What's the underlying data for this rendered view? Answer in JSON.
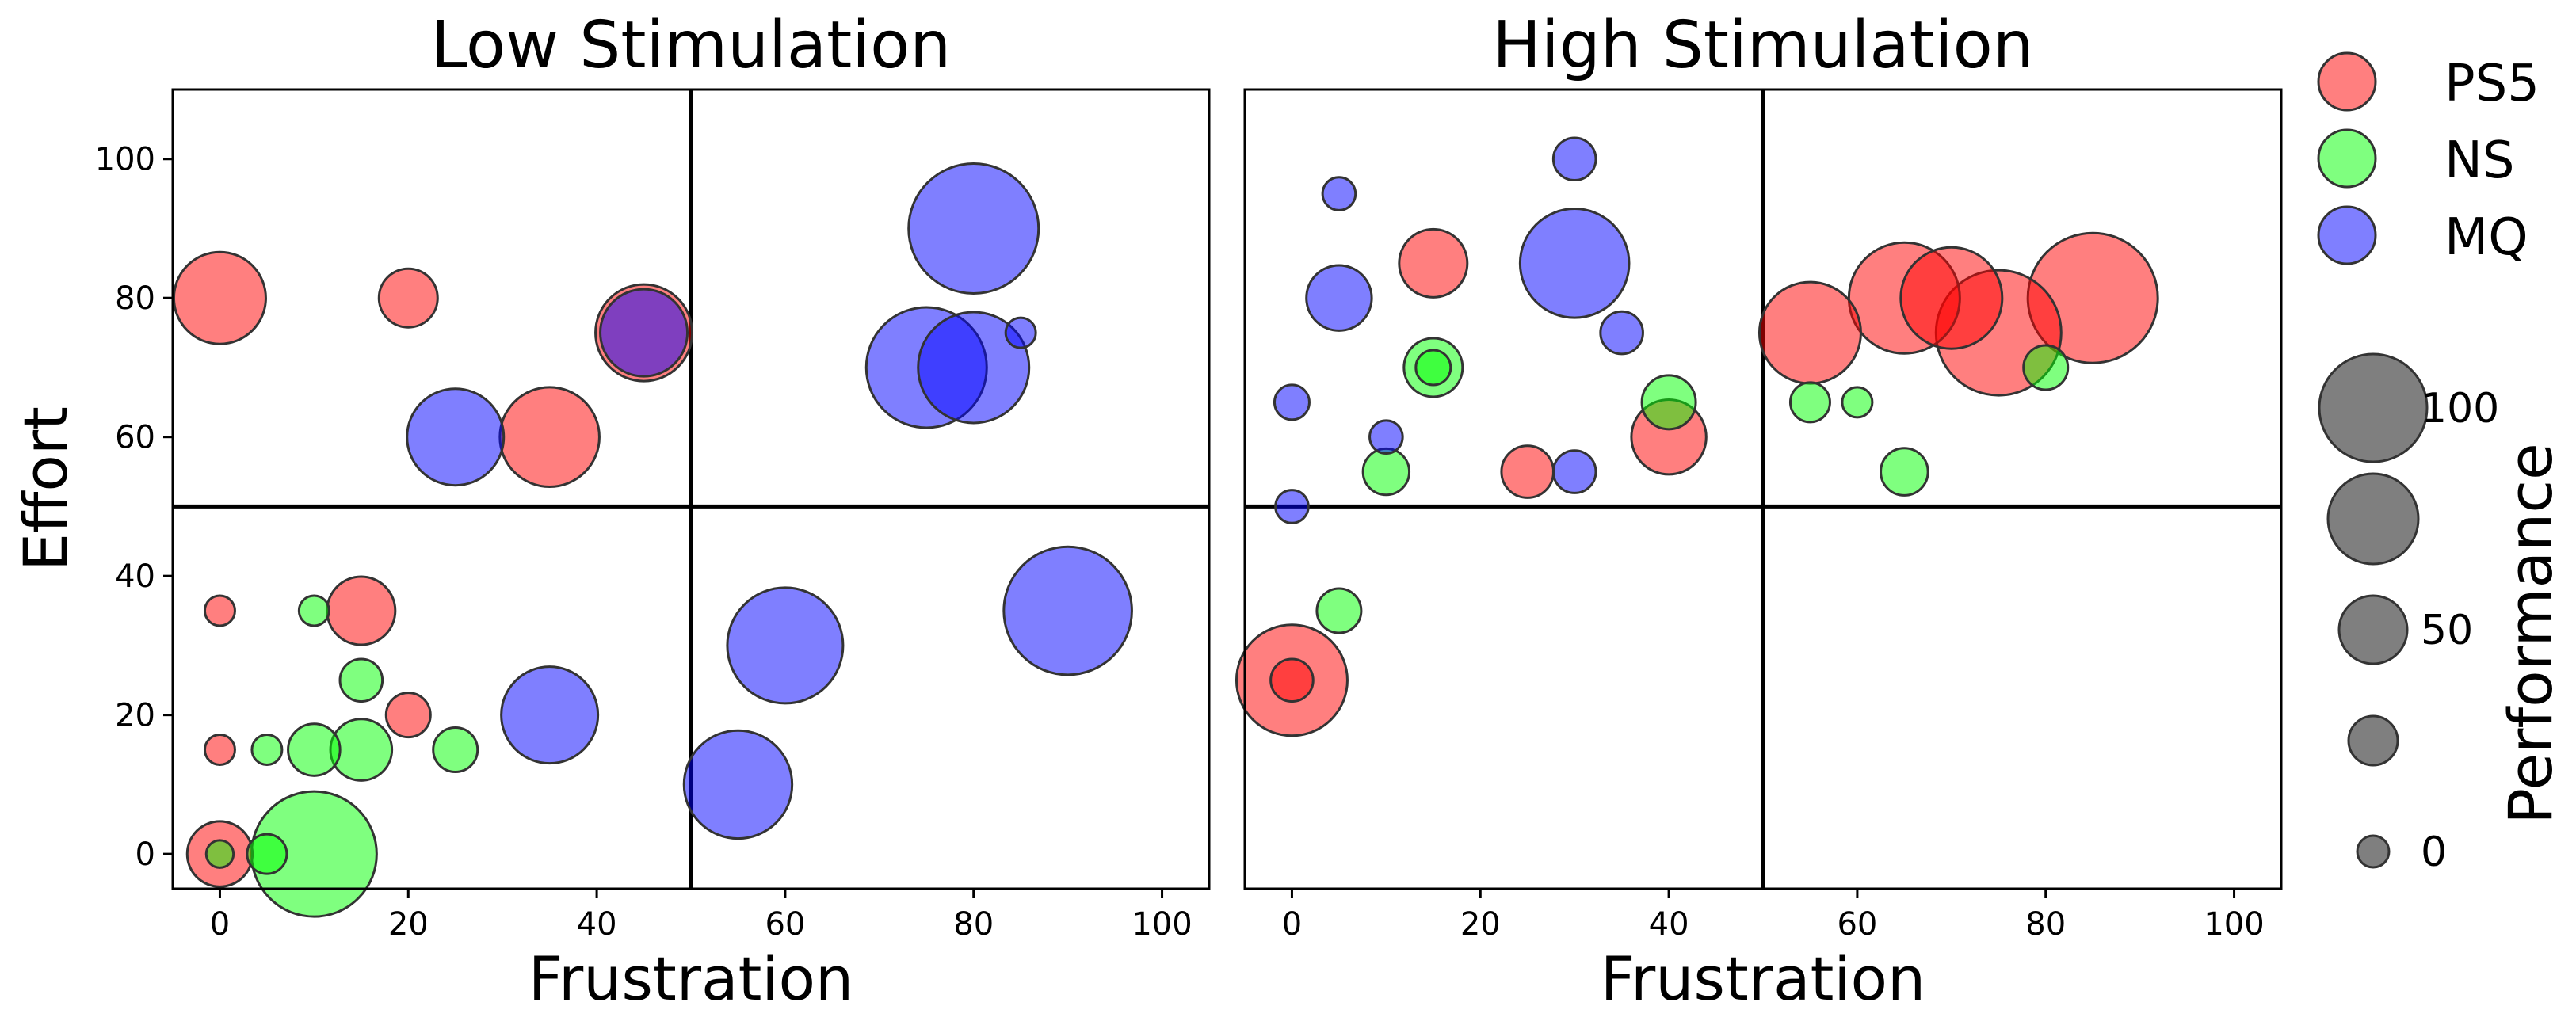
{
  "chart_data": {
    "type": "scatter",
    "bubble_size_meaning": "Performance",
    "colors": {
      "PS5": "#ff0000",
      "NS": "#00ff00",
      "MQ": "#0000ff"
    },
    "alpha": 0.5,
    "y_label": "Effort",
    "x_ticks": [
      "0",
      "20",
      "40",
      "60",
      "80",
      "100"
    ],
    "y_ticks": [
      "0",
      "20",
      "40",
      "60",
      "80",
      "100"
    ],
    "panels": [
      {
        "title": "Low Stimulation",
        "xlabel": "Frustration",
        "xlim": [
          -5,
          105
        ],
        "ylim": [
          -5,
          110
        ],
        "quadrant_lines": {
          "x": 50,
          "y": 50
        },
        "points": [
          {
            "series": "PS5",
            "x": 0,
            "y": 80,
            "performance": 80
          },
          {
            "series": "PS5",
            "x": 20,
            "y": 80,
            "performance": 45
          },
          {
            "series": "PS5",
            "x": 45,
            "y": 75,
            "performance": 85
          },
          {
            "series": "PS5",
            "x": 35,
            "y": 60,
            "performance": 88
          },
          {
            "series": "PS5",
            "x": 0,
            "y": 35,
            "performance": 15
          },
          {
            "series": "PS5",
            "x": 15,
            "y": 35,
            "performance": 55
          },
          {
            "series": "PS5",
            "x": 20,
            "y": 20,
            "performance": 30
          },
          {
            "series": "PS5",
            "x": 0,
            "y": 15,
            "performance": 15
          },
          {
            "series": "PS5",
            "x": 0,
            "y": 0,
            "performance": 52
          },
          {
            "series": "NS",
            "x": 10,
            "y": 35,
            "performance": 15
          },
          {
            "series": "NS",
            "x": 15,
            "y": 25,
            "performance": 28
          },
          {
            "series": "NS",
            "x": 5,
            "y": 15,
            "performance": 15
          },
          {
            "series": "NS",
            "x": 10,
            "y": 15,
            "performance": 38
          },
          {
            "series": "NS",
            "x": 15,
            "y": 15,
            "performance": 48
          },
          {
            "series": "NS",
            "x": 25,
            "y": 15,
            "performance": 30
          },
          {
            "series": "NS",
            "x": 5,
            "y": 0,
            "performance": 25
          },
          {
            "series": "NS",
            "x": 10,
            "y": 0,
            "performance": 115
          },
          {
            "series": "NS",
            "x": 0,
            "y": 0,
            "performance": 12
          },
          {
            "series": "MQ",
            "x": 45,
            "y": 75,
            "performance": 75
          },
          {
            "series": "MQ",
            "x": 25,
            "y": 60,
            "performance": 85
          },
          {
            "series": "MQ",
            "x": 80,
            "y": 90,
            "performance": 120
          },
          {
            "series": "MQ",
            "x": 75,
            "y": 70,
            "performance": 110
          },
          {
            "series": "MQ",
            "x": 80,
            "y": 70,
            "performance": 100
          },
          {
            "series": "MQ",
            "x": 85,
            "y": 75,
            "performance": 15
          },
          {
            "series": "MQ",
            "x": 35,
            "y": 20,
            "performance": 85
          },
          {
            "series": "MQ",
            "x": 60,
            "y": 30,
            "performance": 105
          },
          {
            "series": "MQ",
            "x": 90,
            "y": 35,
            "performance": 118
          },
          {
            "series": "MQ",
            "x": 55,
            "y": 10,
            "performance": 97
          }
        ]
      },
      {
        "title": "High Stimulation",
        "xlabel": "Frustration",
        "xlim": [
          -5,
          105
        ],
        "ylim": [
          -5,
          110
        ],
        "quadrant_lines": {
          "x": 50,
          "y": 50
        },
        "points": [
          {
            "series": "PS5",
            "x": 15,
            "y": 85,
            "performance": 55
          },
          {
            "series": "PS5",
            "x": 25,
            "y": 55,
            "performance": 38
          },
          {
            "series": "PS5",
            "x": 40,
            "y": 60,
            "performance": 62
          },
          {
            "series": "PS5",
            "x": 0,
            "y": 25,
            "performance": 100
          },
          {
            "series": "PS5",
            "x": 0,
            "y": 25,
            "performance": 28
          },
          {
            "series": "PS5",
            "x": 55,
            "y": 75,
            "performance": 90
          },
          {
            "series": "PS5",
            "x": 65,
            "y": 80,
            "performance": 100
          },
          {
            "series": "PS5",
            "x": 70,
            "y": 80,
            "performance": 90
          },
          {
            "series": "PS5",
            "x": 75,
            "y": 75,
            "performance": 115
          },
          {
            "series": "PS5",
            "x": 85,
            "y": 80,
            "performance": 120
          },
          {
            "series": "NS",
            "x": 15,
            "y": 70,
            "performance": 45
          },
          {
            "series": "NS",
            "x": 15,
            "y": 70,
            "performance": 20
          },
          {
            "series": "NS",
            "x": 40,
            "y": 65,
            "performance": 40
          },
          {
            "series": "NS",
            "x": 10,
            "y": 55,
            "performance": 32
          },
          {
            "series": "NS",
            "x": 5,
            "y": 35,
            "performance": 30
          },
          {
            "series": "NS",
            "x": 55,
            "y": 65,
            "performance": 25
          },
          {
            "series": "NS",
            "x": 60,
            "y": 65,
            "performance": 15
          },
          {
            "series": "NS",
            "x": 65,
            "y": 55,
            "performance": 33
          },
          {
            "series": "NS",
            "x": 80,
            "y": 70,
            "performance": 30
          },
          {
            "series": "MQ",
            "x": 5,
            "y": 95,
            "performance": 18
          },
          {
            "series": "MQ",
            "x": 30,
            "y": 100,
            "performance": 28
          },
          {
            "series": "MQ",
            "x": 5,
            "y": 80,
            "performance": 52
          },
          {
            "series": "MQ",
            "x": 30,
            "y": 85,
            "performance": 98
          },
          {
            "series": "MQ",
            "x": 35,
            "y": 75,
            "performance": 28
          },
          {
            "series": "MQ",
            "x": 0,
            "y": 65,
            "performance": 20
          },
          {
            "series": "MQ",
            "x": 10,
            "y": 60,
            "performance": 18
          },
          {
            "series": "MQ",
            "x": 30,
            "y": 55,
            "performance": 28
          },
          {
            "series": "MQ",
            "x": 0,
            "y": 50,
            "performance": 18
          }
        ]
      }
    ],
    "legend": {
      "placement": "right",
      "series": [
        "PS5",
        "NS",
        "MQ"
      ],
      "size_title": "Performance",
      "size_entries": [
        {
          "performance": 100,
          "label": "100"
        },
        {
          "performance": 75,
          "label": ""
        },
        {
          "performance": 50,
          "label": "50"
        },
        {
          "performance": 25,
          "label": ""
        },
        {
          "performance": 0,
          "label": "0"
        }
      ]
    }
  }
}
